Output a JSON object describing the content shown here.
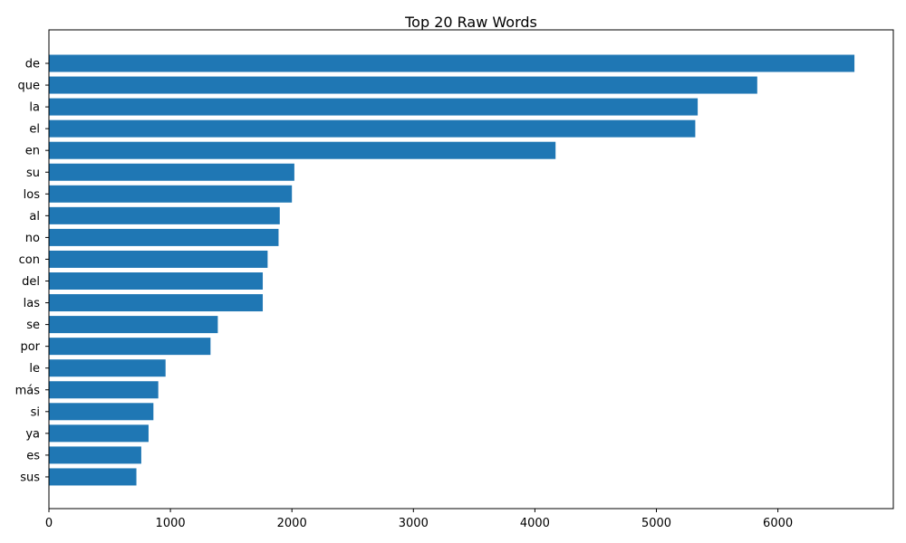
{
  "chart_data": {
    "type": "bar",
    "orientation": "horizontal",
    "title": "Top 20 Raw Words",
    "xlabel": "",
    "ylabel": "",
    "categories": [
      "de",
      "que",
      "la",
      "el",
      "en",
      "su",
      "los",
      "al",
      "no",
      "con",
      "del",
      "las",
      "se",
      "por",
      "le",
      "más",
      "si",
      "ya",
      "es",
      "sus"
    ],
    "values": [
      6630,
      5830,
      5340,
      5320,
      4170,
      2020,
      2000,
      1900,
      1890,
      1800,
      1760,
      1760,
      1390,
      1330,
      960,
      900,
      860,
      820,
      760,
      720
    ],
    "xlim": [
      0,
      6950
    ],
    "xticks": [
      0,
      1000,
      2000,
      3000,
      4000,
      5000,
      6000
    ],
    "grid": false,
    "bar_color": "#1f77b4"
  }
}
